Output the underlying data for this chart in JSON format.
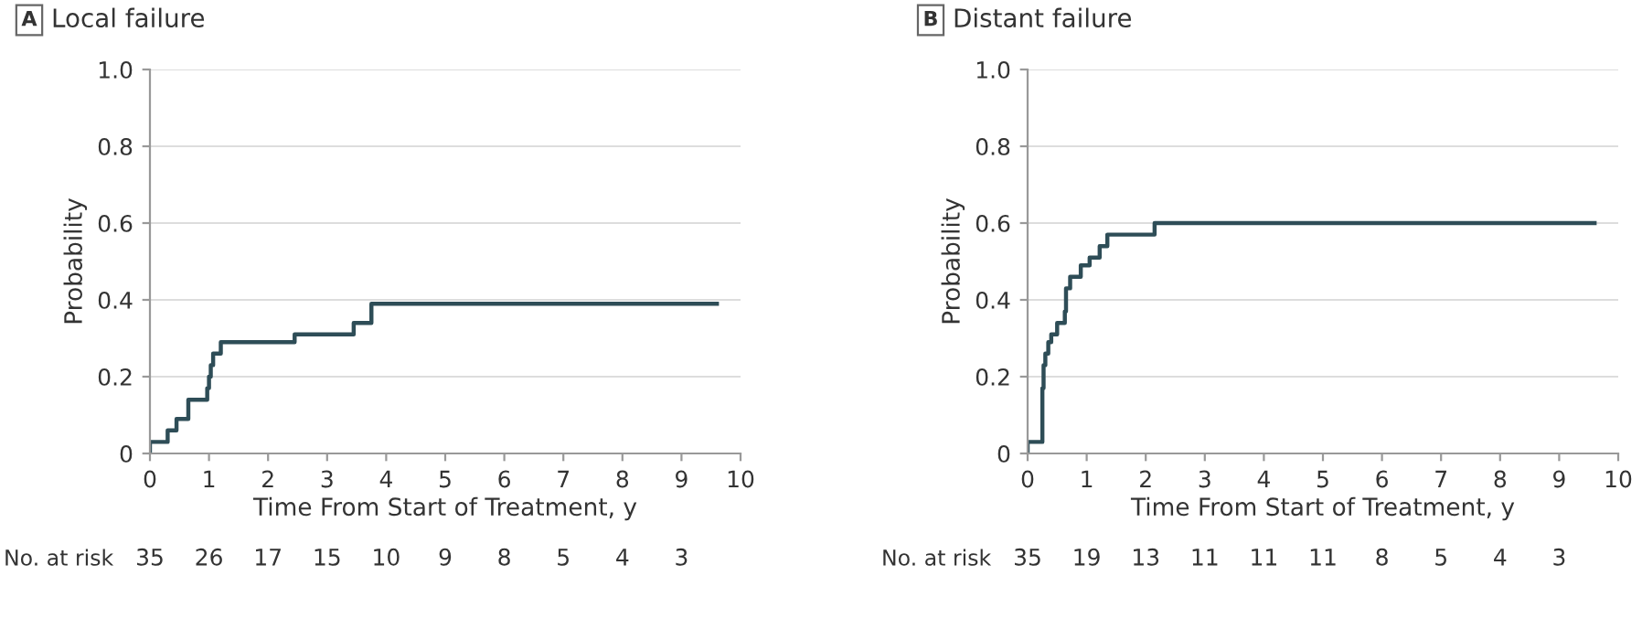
{
  "chart_data": [
    {
      "type": "step",
      "title": "Local failure",
      "xlabel": "Time From Start of Treatment, y",
      "ylabel": "Probability",
      "series": [
        {
          "color": "#2e4d57",
          "x": [
            0,
            0,
            0.3,
            0.45,
            0.65,
            0.97,
            1.0,
            1.03,
            1.07,
            1.2,
            2.45,
            3.45,
            3.75,
            9.6
          ],
          "values": [
            0,
            0.03,
            0.06,
            0.09,
            0.14,
            0.17,
            0.2,
            0.23,
            0.26,
            0.29,
            0.31,
            0.34,
            0.39,
            0.39
          ]
        }
      ],
      "xlim": [
        0,
        10
      ],
      "ylim": [
        0,
        1.0
      ],
      "xticks": [
        0,
        1,
        2,
        3,
        4,
        5,
        6,
        7,
        8,
        9,
        10
      ],
      "yticks": [
        0,
        0.2,
        0.4,
        0.6,
        0.8,
        {
          "value": 1,
          "label": "1.0"
        }
      ],
      "grid": "y",
      "legend": false,
      "annotations": [
        "A",
        "No. at risk",
        "35",
        "26",
        "17",
        "15",
        "10",
        "9",
        "8",
        "5",
        "4",
        "3"
      ]
    },
    {
      "type": "step",
      "title": "Distant failure",
      "xlabel": "Time From Start of Treatment, y",
      "ylabel": "Probability",
      "series": [
        {
          "color": "#2e4d57",
          "x": [
            0,
            0,
            0.25,
            0.27,
            0.3,
            0.35,
            0.4,
            0.5,
            0.63,
            0.65,
            0.72,
            0.9,
            1.05,
            1.22,
            1.35,
            2.15,
            9.6
          ],
          "values": [
            0,
            0.03,
            0.17,
            0.23,
            0.26,
            0.29,
            0.31,
            0.34,
            0.37,
            0.43,
            0.46,
            0.49,
            0.51,
            0.54,
            0.57,
            0.6,
            0.6
          ]
        }
      ],
      "xlim": [
        0,
        10
      ],
      "ylim": [
        0,
        1.0
      ],
      "xticks": [
        0,
        1,
        2,
        3,
        4,
        5,
        6,
        7,
        8,
        9,
        10
      ],
      "yticks": [
        0,
        0.2,
        0.4,
        0.6,
        0.8,
        {
          "value": 1,
          "label": "1.0"
        }
      ],
      "grid": "y",
      "legend": false,
      "annotations": [
        "B",
        "No. at risk",
        "35",
        "19",
        "13",
        "11",
        "11",
        "11",
        "8",
        "5",
        "4",
        "3"
      ]
    }
  ]
}
